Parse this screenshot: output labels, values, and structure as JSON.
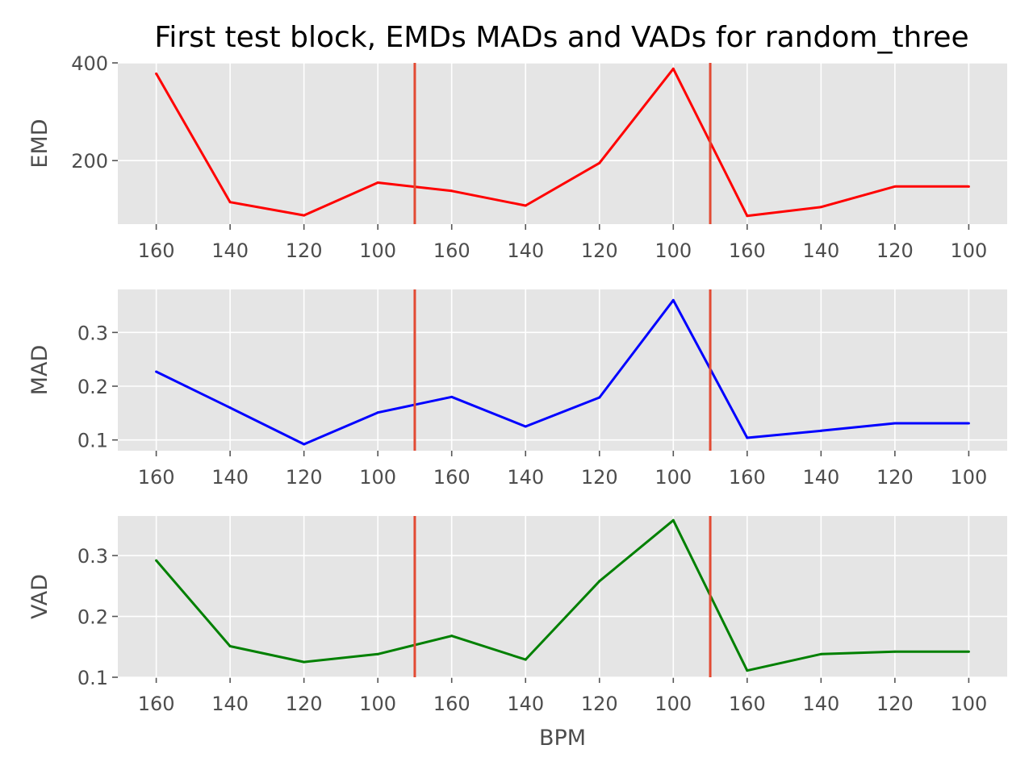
{
  "chart_data": {
    "type": "line",
    "title": "First test block, EMDs MADs and VADs for random_three",
    "xlabel": "BPM",
    "categories": [
      "160",
      "140",
      "120",
      "100",
      "160",
      "140",
      "120",
      "100",
      "160",
      "140",
      "120",
      "100"
    ],
    "x": [
      0,
      1,
      2,
      3,
      4,
      5,
      6,
      7,
      8,
      9,
      10,
      11
    ],
    "xlim": [
      -0.52,
      11.52
    ],
    "vlines": [
      3.5,
      7.5
    ],
    "vline_color": "#e24a33",
    "background": "#e5e5e5",
    "grid": true,
    "subplots": [
      {
        "ylabel": "EMD",
        "color": "#ff0000",
        "ylim": [
          70,
          400
        ],
        "yticks": [
          200,
          400
        ],
        "ytick_labels": [
          "200",
          "400"
        ],
        "values": [
          378,
          115,
          88,
          155,
          138,
          108,
          195,
          388,
          87,
          105,
          147,
          147
        ]
      },
      {
        "ylabel": "MAD",
        "color": "#0000ff",
        "ylim": [
          0.08,
          0.38
        ],
        "yticks": [
          0.1,
          0.2,
          0.3
        ],
        "ytick_labels": [
          "0.1",
          "0.2",
          "0.3"
        ],
        "values": [
          0.227,
          0.16,
          0.092,
          0.151,
          0.18,
          0.125,
          0.179,
          0.36,
          0.104,
          0.117,
          0.131,
          0.131
        ]
      },
      {
        "ylabel": "VAD",
        "color": "#008000",
        "ylim": [
          0.1,
          0.365
        ],
        "yticks": [
          0.1,
          0.2,
          0.3
        ],
        "ytick_labels": [
          "0.1",
          "0.2",
          "0.3"
        ],
        "values": [
          0.292,
          0.151,
          0.125,
          0.138,
          0.168,
          0.129,
          0.258,
          0.358,
          0.111,
          0.138,
          0.142,
          0.142
        ]
      }
    ]
  }
}
